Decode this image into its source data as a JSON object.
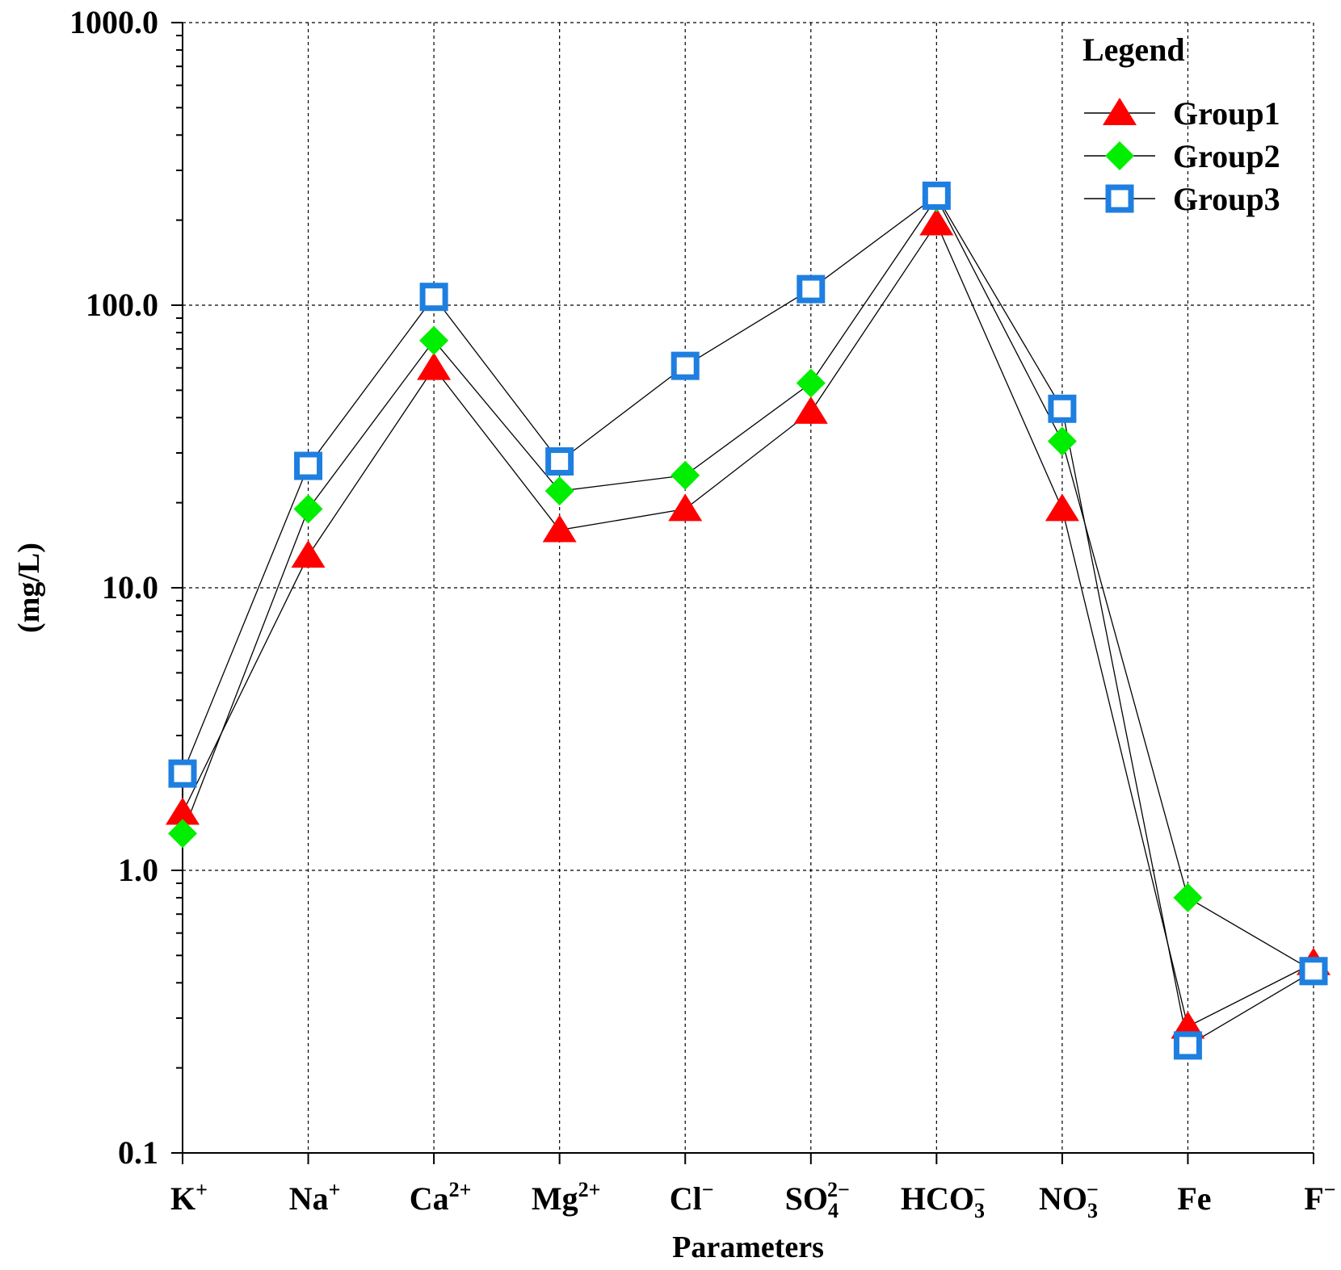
{
  "chart_data": {
    "type": "line",
    "yscale": "log",
    "ylim": [
      0.1,
      1000
    ],
    "ylabel": "(mg/L)",
    "xlabel": "Parameters",
    "yticks": [
      {
        "value": 0.1,
        "label": "0.1"
      },
      {
        "value": 1,
        "label": "1.0"
      },
      {
        "value": 10,
        "label": "10.0"
      },
      {
        "value": 100,
        "label": "100.0"
      },
      {
        "value": 1000,
        "label": "1000.0"
      }
    ],
    "categories": [
      {
        "base": "K",
        "sub": "",
        "sup": "+"
      },
      {
        "base": "Na",
        "sub": "",
        "sup": "+"
      },
      {
        "base": "Ca",
        "sub": "",
        "sup": "2+"
      },
      {
        "base": "Mg",
        "sub": "",
        "sup": "2+"
      },
      {
        "base": "Cl",
        "sub": "",
        "sup": "−"
      },
      {
        "base": "SO",
        "sub": "4",
        "sup": "2−"
      },
      {
        "base": "HCO",
        "sub": "3",
        "sup": "−"
      },
      {
        "base": "NO",
        "sub": "3",
        "sup": "−"
      },
      {
        "base": "Fe",
        "sub": "",
        "sup": ""
      },
      {
        "base": "F",
        "sub": "",
        "sup": "−"
      }
    ],
    "legend": {
      "title": "Legend",
      "position": "top-right"
    },
    "series": [
      {
        "name": "Group1",
        "marker": "triangle",
        "color": "#ff0000",
        "values": [
          1.6,
          13,
          60,
          16,
          19,
          42,
          195,
          19,
          0.28,
          0.47
        ]
      },
      {
        "name": "Group2",
        "marker": "diamond",
        "color": "#00ee00",
        "values": [
          1.35,
          19,
          75,
          22,
          25,
          53,
          240,
          33,
          0.8,
          0.44
        ]
      },
      {
        "name": "Group3",
        "marker": "square",
        "color": "#1e7fe0",
        "values": [
          2.2,
          27,
          107,
          28,
          61,
          114,
          244,
          43,
          0.24,
          0.44
        ]
      }
    ]
  }
}
